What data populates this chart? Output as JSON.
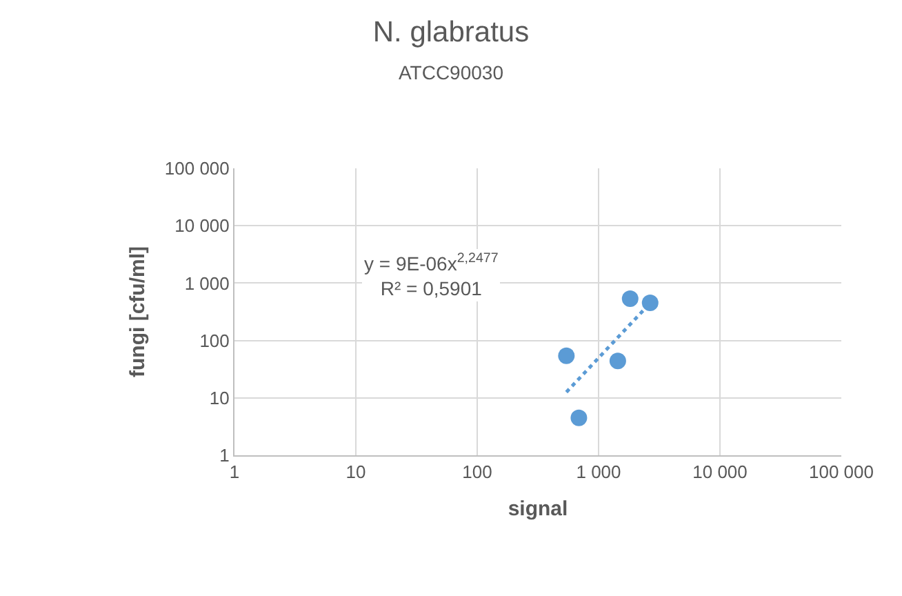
{
  "chart_data": {
    "type": "scatter",
    "title": "N. glabratus",
    "subtitle": "ATCC90030",
    "xlabel": "signal",
    "ylabel": "fungi [cfu/ml]",
    "log": "xy",
    "grid": true,
    "marker": "circle",
    "xlim": [
      1,
      100000
    ],
    "ylim": [
      1,
      100000
    ],
    "xticks": [
      1,
      10,
      100,
      {
        "value": 1000,
        "label": "1 000"
      },
      {
        "value": 10000,
        "label": "10 000"
      },
      {
        "value": 100000,
        "label": "100 000"
      }
    ],
    "yticks": [
      1,
      10,
      100,
      {
        "value": 1000,
        "label": "1 000"
      },
      {
        "value": 10000,
        "label": "10 000"
      },
      {
        "value": 100000,
        "label": "100 000"
      }
    ],
    "series": [
      {
        "color": "#5b9bd5",
        "x": [
          543,
          688,
          1440,
          1820,
          2660
        ],
        "values": [
          54,
          4.5,
          44,
          535,
          453
        ]
      },
      {
        "type": "line",
        "color": "#5b9bd5",
        "line_style": "dotted",
        "marker": "none",
        "x": [
          543,
          2660
        ],
        "values": [
          12.6,
          448
        ]
      }
    ],
    "annotations": [
      "y = 9E-06x$^{2,2477}$",
      "R² = 0,5901"
    ]
  }
}
